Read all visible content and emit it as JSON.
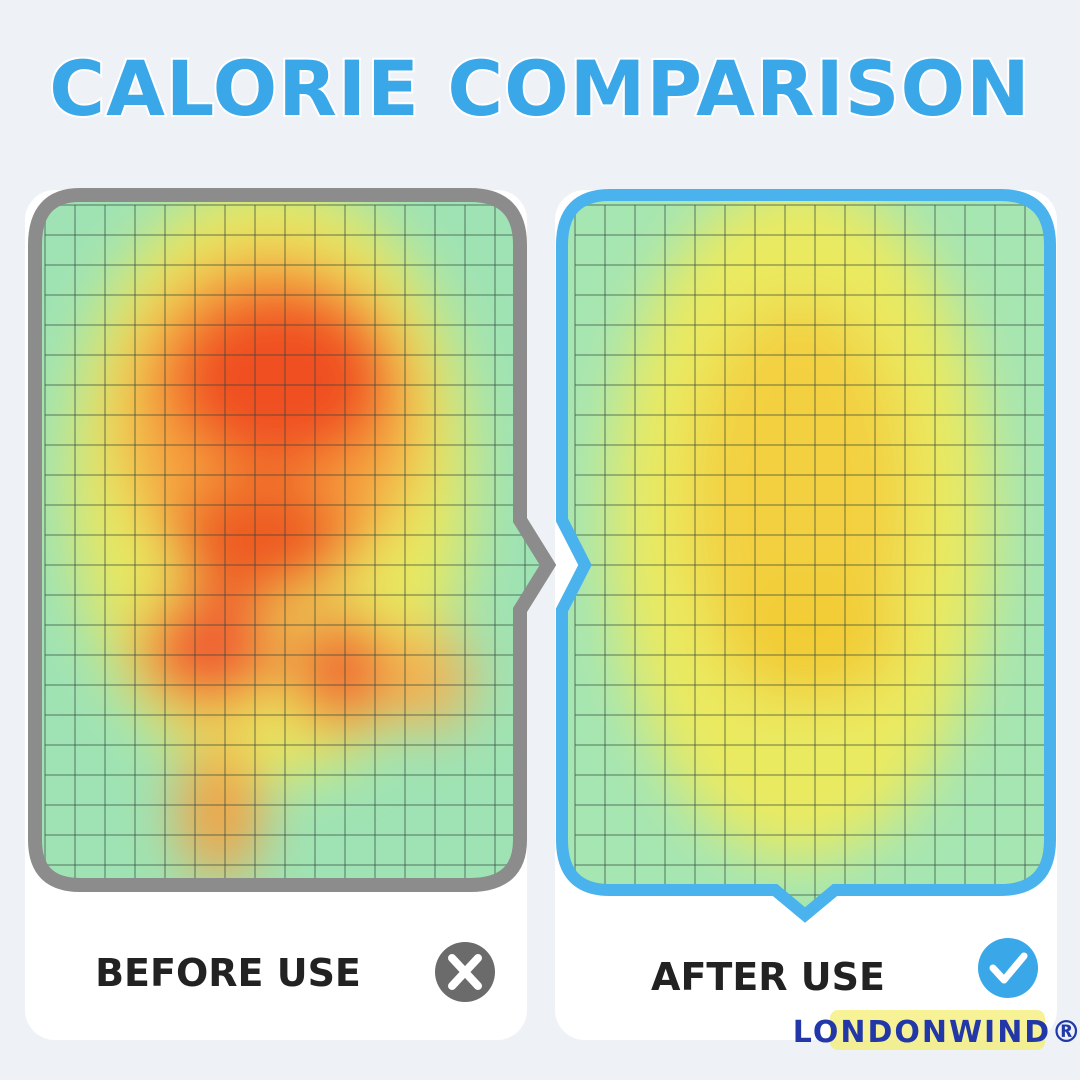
{
  "title": "CALORIE COMPARISON",
  "panels": [
    {
      "label": "BEFORE USE"
    },
    {
      "label": "AFTER USE"
    }
  ],
  "brand": "LONDONWIND®"
}
